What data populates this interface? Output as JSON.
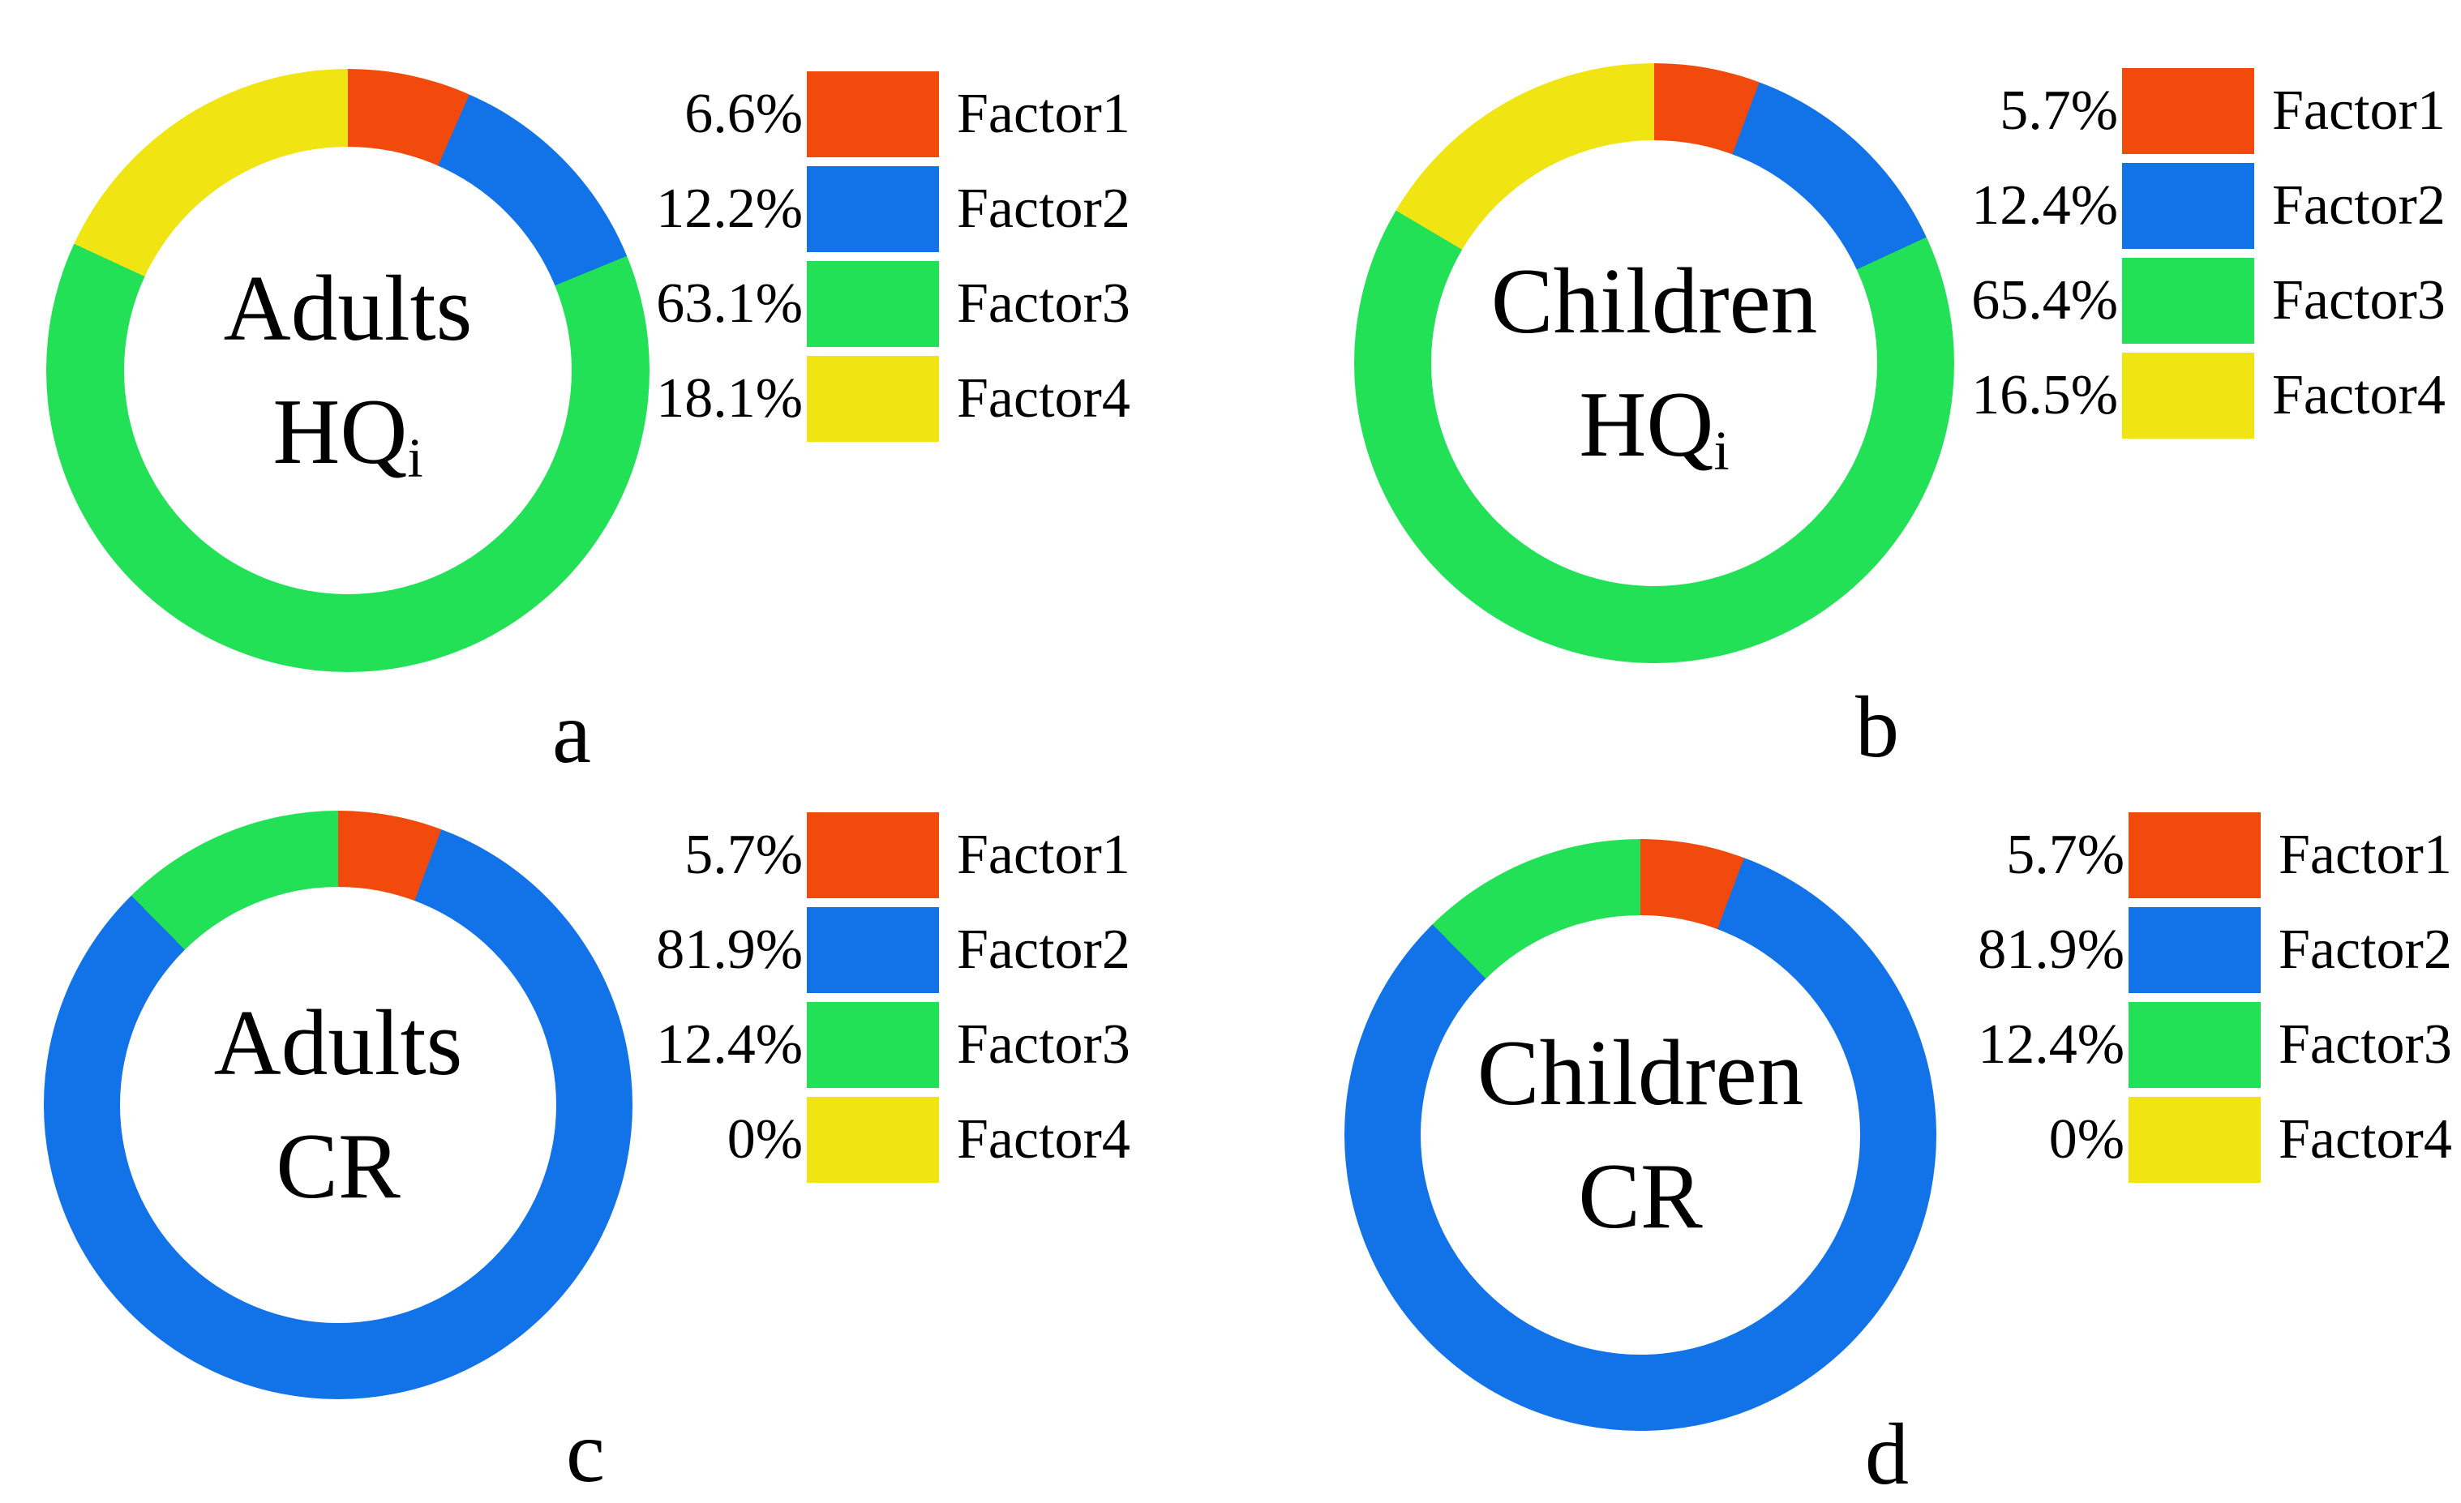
{
  "colors": {
    "factor1": "#F24A0D",
    "factor2": "#1272E8",
    "factor3": "#22E157",
    "factor4": "#F0E513"
  },
  "chart_data": [
    {
      "id": "a",
      "type": "pie",
      "subtype": "donut",
      "title": "Adults HQi",
      "caption": "a",
      "center": {
        "line1": "Adults",
        "line2": "HQ",
        "line2_sub": "i"
      },
      "series_labels": [
        "Factor1",
        "Factor2",
        "Factor3",
        "Factor4"
      ],
      "values": [
        6.6,
        12.2,
        63.1,
        18.1
      ],
      "value_labels": [
        "6.6%",
        "12.2%",
        "63.1%",
        "18.1%"
      ],
      "colors": [
        "#F24A0D",
        "#1272E8",
        "#22E157",
        "#F0E513"
      ],
      "unit": "%",
      "start_angle_deg": 0,
      "direction": "clockwise",
      "legend_position": "right"
    },
    {
      "id": "b",
      "type": "pie",
      "subtype": "donut",
      "title": "Children HQi",
      "caption": "b",
      "center": {
        "line1": "Children",
        "line2": "HQ",
        "line2_sub": "i"
      },
      "series_labels": [
        "Factor1",
        "Factor2",
        "Factor3",
        "Factor4"
      ],
      "values": [
        5.7,
        12.4,
        65.4,
        16.5
      ],
      "value_labels": [
        "5.7%",
        "12.4%",
        "65.4%",
        "16.5%"
      ],
      "colors": [
        "#F24A0D",
        "#1272E8",
        "#22E157",
        "#F0E513"
      ],
      "unit": "%",
      "start_angle_deg": 0,
      "direction": "clockwise",
      "legend_position": "right"
    },
    {
      "id": "c",
      "type": "pie",
      "subtype": "donut",
      "title": "Adults CR",
      "caption": "c",
      "center": {
        "line1": "Adults",
        "line2": "CR",
        "line2_sub": ""
      },
      "series_labels": [
        "Factor1",
        "Factor2",
        "Factor3",
        "Factor4"
      ],
      "values": [
        5.7,
        81.9,
        12.4,
        0
      ],
      "value_labels": [
        "5.7%",
        "81.9%",
        "12.4%",
        "0%"
      ],
      "colors": [
        "#F24A0D",
        "#1272E8",
        "#22E157",
        "#F0E513"
      ],
      "unit": "%",
      "start_angle_deg": 0,
      "direction": "clockwise",
      "legend_position": "right"
    },
    {
      "id": "d",
      "type": "pie",
      "subtype": "donut",
      "title": "Children CR",
      "caption": "d",
      "center": {
        "line1": "Children",
        "line2": "CR",
        "line2_sub": ""
      },
      "series_labels": [
        "Factor1",
        "Factor2",
        "Factor3",
        "Factor4"
      ],
      "values": [
        5.7,
        81.9,
        12.4,
        0
      ],
      "value_labels": [
        "5.7%",
        "81.9%",
        "12.4%",
        "0%"
      ],
      "colors": [
        "#F24A0D",
        "#1272E8",
        "#22E157",
        "#F0E513"
      ],
      "unit": "%",
      "start_angle_deg": 0,
      "direction": "clockwise",
      "legend_position": "right"
    }
  ]
}
